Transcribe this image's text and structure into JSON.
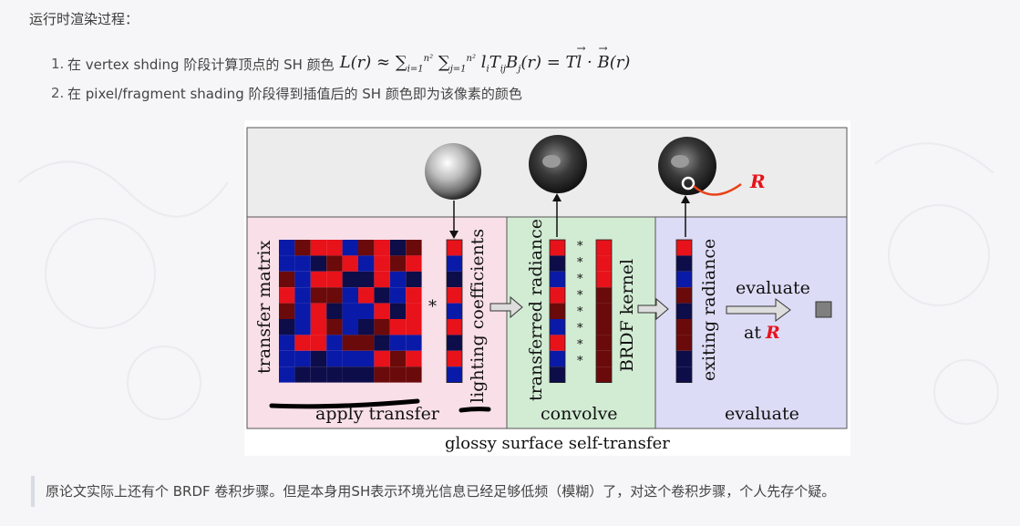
{
  "heading": "运行时渲染过程：",
  "steps": [
    {
      "num": "1.",
      "text": "在 vertex shding 阶段计算顶点的 SH 颜色"
    },
    {
      "num": "2.",
      "text": "在 pixel/fragment shading 阶段得到插值后的 SH 颜色即为该像素的颜色"
    }
  ],
  "formula": {
    "lhs": "L(r) ≈ ",
    "sum1_sup": "n²",
    "sum1_sub": "i=1",
    "sum2_sup": "n²",
    "sum2_sub": "j=1",
    "body": " l",
    "body_sub": "i",
    "body2": "T",
    "body2_sub": "ij",
    "body3": "B",
    "body3_sub": "j",
    "body4": "(r) = T",
    "vec_l": "l",
    "dot": " · ",
    "vec_b": "B",
    "tail": "(r)"
  },
  "figure": {
    "label_transfer_matrix": "transfer matrix",
    "label_star": "*",
    "label_lighting": "lighting coefficients",
    "label_transferred": "transferred radiance",
    "label_brdf": "BRDF kernel",
    "label_exiting": "exiting radiance",
    "label_evaluate": "evaluate",
    "label_at": "at",
    "label_R": "R",
    "label_R_top": "R",
    "section_apply": "apply transfer",
    "section_convolve": "convolve",
    "section_evaluate": "evaluate",
    "caption": "glossy surface self-transfer",
    "colors": {
      "red": "#e8121a",
      "blue": "#0a1aa8",
      "darkred": "#6b0a0a",
      "darkblue": "#0d0d4a",
      "pink": "#f9dfe8",
      "green": "#d2ecd4",
      "lavender": "#dcdcf6",
      "gray": "#ececec"
    }
  },
  "quote": "原论文实际上还有个 BRDF 卷积步骤。但是本身用SH表示环境光信息已经足够低频（模糊）了，对这个卷积步骤，个人先存个疑。"
}
